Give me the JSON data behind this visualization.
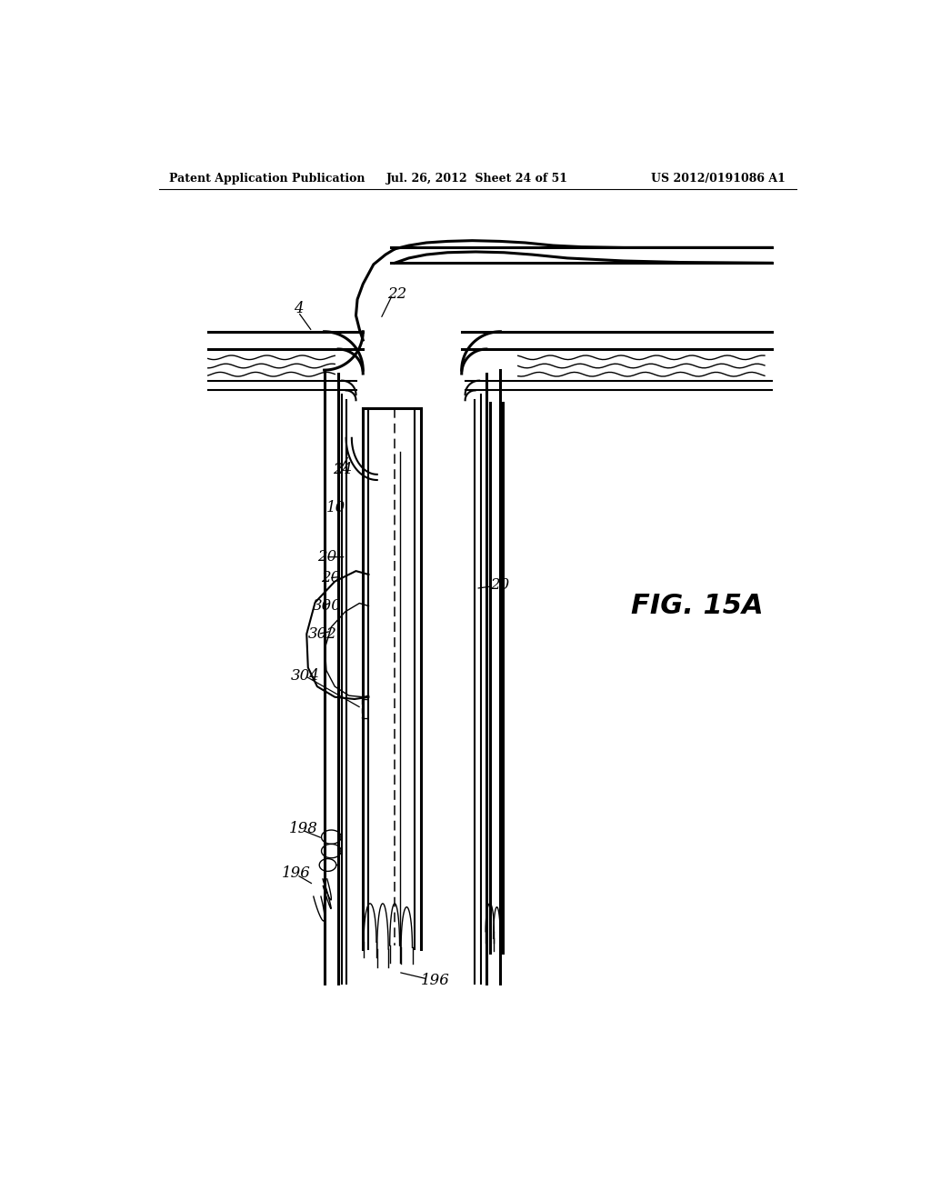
{
  "header_left": "Patent Application Publication",
  "header_center": "Jul. 26, 2012  Sheet 24 of 51",
  "header_right": "US 2012/0191086 A1",
  "fig_label": "FIG. 15A",
  "bg_color": "#ffffff",
  "line_color": "#000000",
  "lw_thick": 2.2,
  "lw_med": 1.5,
  "lw_thin": 1.0
}
